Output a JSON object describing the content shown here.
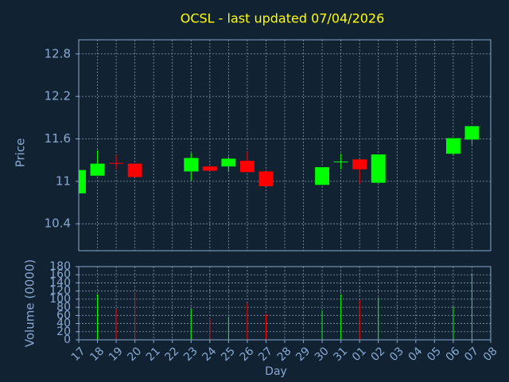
{
  "chart_data": [
    {
      "type": "candlestick",
      "title": "OCSL - last updated 07/04/2026",
      "y_label": "Price",
      "open": [
        10.83,
        11.08,
        11.26,
        11.25,
        null,
        null,
        11.14,
        11.21,
        11.21,
        11.29,
        11.14,
        null,
        null,
        10.95,
        11.27,
        11.31,
        10.98,
        null,
        null,
        null,
        11.39,
        11.59,
        null
      ],
      "high": [
        11.16,
        11.44,
        11.37,
        11.25,
        null,
        null,
        11.4,
        11.22,
        11.35,
        11.42,
        11.14,
        null,
        null,
        11.2,
        11.39,
        11.31,
        11.38,
        null,
        null,
        null,
        11.61,
        11.78,
        null
      ],
      "low": [
        10.83,
        11.08,
        11.17,
        11.06,
        null,
        null,
        11.01,
        11.15,
        11.13,
        11.13,
        10.93,
        null,
        null,
        10.95,
        11.17,
        10.97,
        10.98,
        null,
        null,
        null,
        11.37,
        11.52,
        null
      ],
      "close": [
        11.16,
        11.25,
        11.25,
        11.06,
        null,
        null,
        11.33,
        11.15,
        11.32,
        11.13,
        10.93,
        null,
        null,
        11.2,
        11.28,
        11.17,
        11.38,
        null,
        null,
        null,
        11.61,
        11.78,
        null
      ],
      "ylim": [
        10.02,
        13.0
      ],
      "yticks": [
        10.4,
        11,
        11.6,
        12.2,
        12.8
      ],
      "grid": true,
      "up_color": "#00ff00",
      "down_color": "#ff0000"
    },
    {
      "type": "bar",
      "y_label": "Volume (0000)",
      "x_label": "Day",
      "categories": [
        "17",
        "18",
        "19",
        "20",
        "21",
        "22",
        "23",
        "24",
        "25",
        "26",
        "27",
        "28",
        "29",
        "30",
        "31",
        "01",
        "02",
        "03",
        "04",
        "05",
        "06",
        "07",
        "08"
      ],
      "values": [
        null,
        112,
        76,
        117,
        null,
        null,
        76,
        53,
        57,
        90,
        63,
        null,
        null,
        72,
        112,
        98,
        104,
        null,
        null,
        null,
        82,
        164,
        null
      ],
      "colors": [
        null,
        "#00ff00",
        "#ff0000",
        "#ff0000",
        null,
        null,
        "#00ff00",
        "#ff0000",
        "#00ff00",
        "#ff0000",
        "#ff0000",
        null,
        null,
        "#00ff00",
        "#00ff00",
        "#ff0000",
        "#00ff00",
        null,
        null,
        null,
        "#00ff00",
        "#00ff00",
        null
      ],
      "ylim": [
        0,
        180
      ],
      "yticks": [
        0,
        20,
        40,
        60,
        80,
        100,
        120,
        140,
        160,
        180
      ],
      "grid": true
    }
  ]
}
